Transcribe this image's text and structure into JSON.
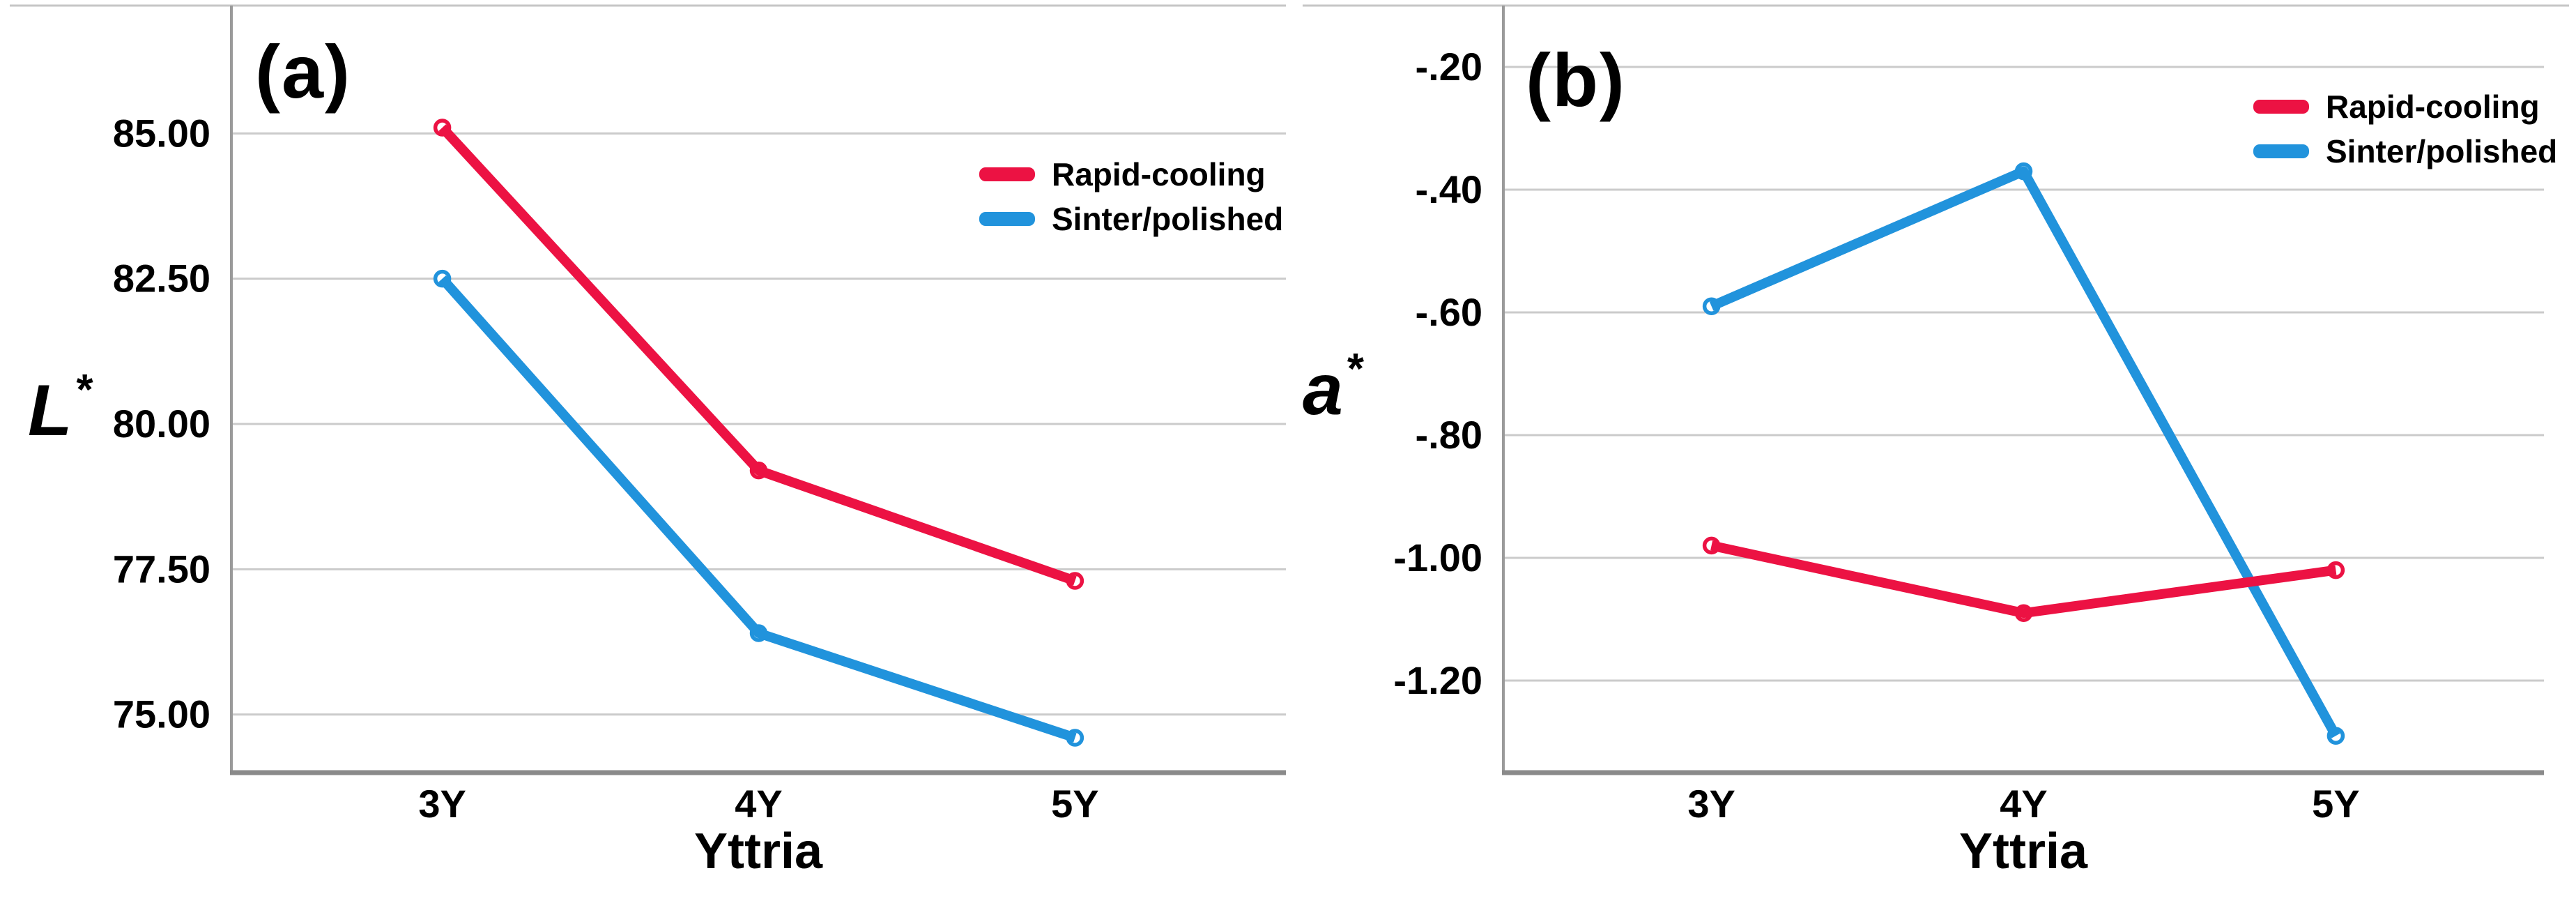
{
  "figure": {
    "background": "#ffffff",
    "grid_color": "#CBCBCB",
    "axis_left_color": "#9A9A9A",
    "axis_bottom_color": "#8A8A8A",
    "top_border_color": "#C6C6C6",
    "text_color": "#000000",
    "rapid_cooling_color": "#EC1243",
    "sinter_polished_color": "#2193DC"
  },
  "chart_data": [
    {
      "type": "line",
      "panel_label": "(a)",
      "ylabel": "L",
      "ylabel_sup": "*",
      "xlabel": "Yttria",
      "categories": [
        "3Y",
        "4Y",
        "5Y"
      ],
      "series": [
        {
          "name": "Sinter/polished",
          "color": "#2193DC",
          "values": [
            82.5,
            76.4,
            74.6
          ]
        },
        {
          "name": "Rapid-cooling",
          "color": "#EC1243",
          "values": [
            85.1,
            79.2,
            77.3
          ]
        }
      ],
      "legend_order": [
        "Rapid-cooling",
        "Sinter/polished"
      ],
      "yticks": [
        85.0,
        82.5,
        80.0,
        77.5,
        75.0
      ],
      "ytick_labels": [
        "85.00",
        "82.50",
        "80.00",
        "77.50",
        "75.00"
      ],
      "ylim": [
        74.0,
        87.2
      ],
      "grid": true,
      "legend_position": "top-right"
    },
    {
      "type": "line",
      "panel_label": "(b)",
      "ylabel": "a",
      "ylabel_sup": "*",
      "xlabel": "Yttria",
      "categories": [
        "3Y",
        "4Y",
        "5Y"
      ],
      "series": [
        {
          "name": "Sinter/polished",
          "color": "#2193DC",
          "values": [
            -0.59,
            -0.37,
            -1.29
          ]
        },
        {
          "name": "Rapid-cooling",
          "color": "#EC1243",
          "values": [
            -0.98,
            -1.09,
            -1.02
          ]
        }
      ],
      "legend_order": [
        "Rapid-cooling",
        "Sinter/polished"
      ],
      "yticks": [
        -0.2,
        -0.4,
        -0.6,
        -0.8,
        -1.0,
        -1.2
      ],
      "ytick_labels": [
        "-.20",
        "-.40",
        "-.60",
        "-.80",
        "-1.00",
        "-1.20"
      ],
      "ylim": [
        -1.35,
        -0.1
      ],
      "grid": true,
      "legend_position": "top-right"
    }
  ]
}
